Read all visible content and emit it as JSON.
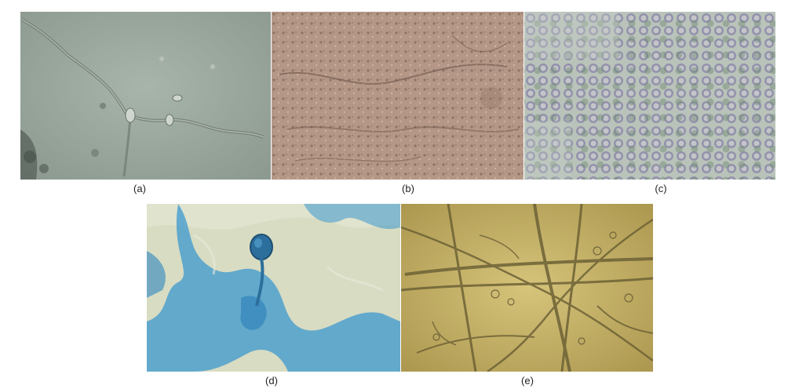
{
  "figure": {
    "panels": [
      {
        "id": "a",
        "label": "(a)"
      },
      {
        "id": "b",
        "label": "(b)"
      },
      {
        "id": "c",
        "label": "(c)"
      },
      {
        "id": "d",
        "label": "(d)"
      },
      {
        "id": "e",
        "label": "(e)"
      }
    ]
  },
  "colors": {
    "panel_a_background": "#9aa79c",
    "panel_b_background": "#b59787",
    "panel_c_background": "#b9c3ba",
    "panel_c_cells": "#8a86a8",
    "panel_d_background": "#d8dcc2",
    "panel_d_stain": "#2f8fc8",
    "panel_e_background": "#c9b56a",
    "panel_e_hyphae": "#6d6236"
  }
}
